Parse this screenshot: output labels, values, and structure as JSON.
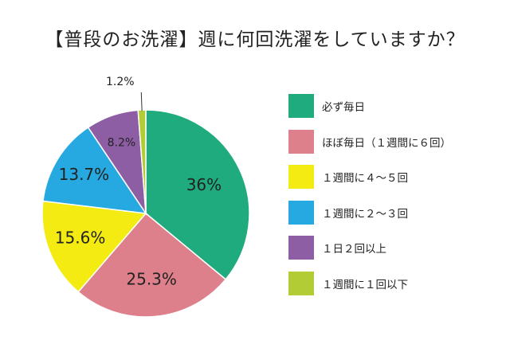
{
  "title": "【普段のお洗濯】週に何回洗濯をしていますか？",
  "chart_data": {
    "type": "pie",
    "title": "【普段のお洗濯】週に何回洗濯をしていますか？",
    "slices": [
      {
        "label": "必ず毎日",
        "value": 36,
        "display": "36%",
        "color": "#1fab7d"
      },
      {
        "label": "ほぼ毎日（１週間に６回）",
        "value": 25.3,
        "display": "25.3%",
        "color": "#de808b"
      },
      {
        "label": "１週間に４〜５回",
        "value": 15.6,
        "display": "15.6%",
        "color": "#f4eb12"
      },
      {
        "label": "１週間に２〜３回",
        "value": 13.7,
        "display": "13.7%",
        "color": "#26a8e0"
      },
      {
        "label": "１日２回以上",
        "value": 8.2,
        "display": "8.2%",
        "color": "#8e5ea5"
      },
      {
        "label": "１週間に１回以下",
        "value": 1.2,
        "display": "1.2%",
        "color": "#b1cc35"
      }
    ],
    "legend_position": "right"
  }
}
